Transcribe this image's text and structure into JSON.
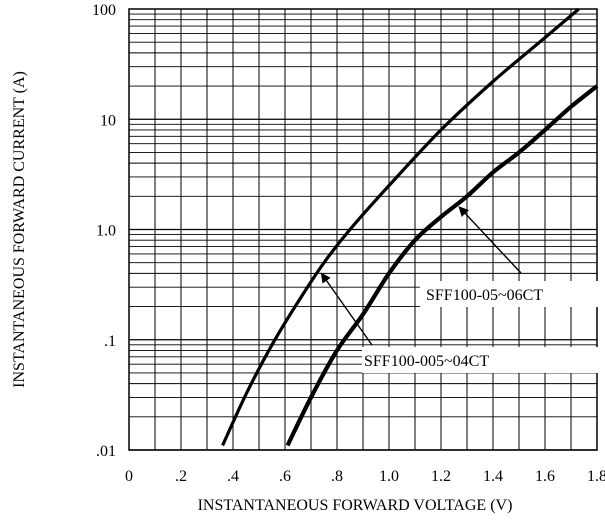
{
  "chart_data": {
    "type": "line",
    "title": "",
    "xlabel": "INSTANTANEOUS FORWARD VOLTAGE (V)",
    "ylabel": "INSTANTANEOUS FORWARD CURRENT (A)",
    "xlim": [
      0,
      1.8
    ],
    "ylim": [
      0.01,
      100
    ],
    "y_scale": "log",
    "grid": true,
    "x_ticks": [
      {
        "value": 0.0,
        "label": "0"
      },
      {
        "value": 0.2,
        "label": ".2"
      },
      {
        "value": 0.4,
        "label": ".4"
      },
      {
        "value": 0.6,
        "label": ".6"
      },
      {
        "value": 0.8,
        "label": ".8"
      },
      {
        "value": 1.0,
        "label": "1.0"
      },
      {
        "value": 1.2,
        "label": "1.2"
      },
      {
        "value": 1.4,
        "label": "1.4"
      },
      {
        "value": 1.6,
        "label": "1.6"
      },
      {
        "value": 1.8,
        "label": "1.8"
      }
    ],
    "y_ticks": [
      {
        "value": 100,
        "label": "100"
      },
      {
        "value": 10,
        "label": "10"
      },
      {
        "value": 1,
        "label": "1.0"
      },
      {
        "value": 0.1,
        "label": ".1"
      },
      {
        "value": 0.01,
        "label": ".01"
      }
    ],
    "series": [
      {
        "name": "SFF100-005~04CT",
        "color": "#000000",
        "x": [
          0.36,
          0.45,
          0.55,
          0.65,
          0.75,
          0.85,
          1.0,
          1.2,
          1.4,
          1.6,
          1.73
        ],
        "y": [
          0.011,
          0.032,
          0.09,
          0.22,
          0.5,
          1.0,
          2.5,
          8.0,
          22,
          55,
          100
        ]
      },
      {
        "name": "SFF100-05~06CT",
        "color": "#000000",
        "x": [
          0.61,
          0.7,
          0.8,
          0.9,
          1.0,
          1.1,
          1.2,
          1.3,
          1.4,
          1.5,
          1.6,
          1.7,
          1.8
        ],
        "y": [
          0.011,
          0.03,
          0.08,
          0.17,
          0.4,
          0.8,
          1.3,
          2.0,
          3.3,
          5.0,
          8.0,
          13,
          20
        ]
      }
    ],
    "annotations": [
      {
        "text": "SFF100-05~06CT",
        "series": 1,
        "point": [
          1.27,
          1.6
        ]
      },
      {
        "text": "SFF100-005~04CT",
        "series": 0,
        "point": [
          0.74,
          0.4
        ]
      }
    ]
  }
}
